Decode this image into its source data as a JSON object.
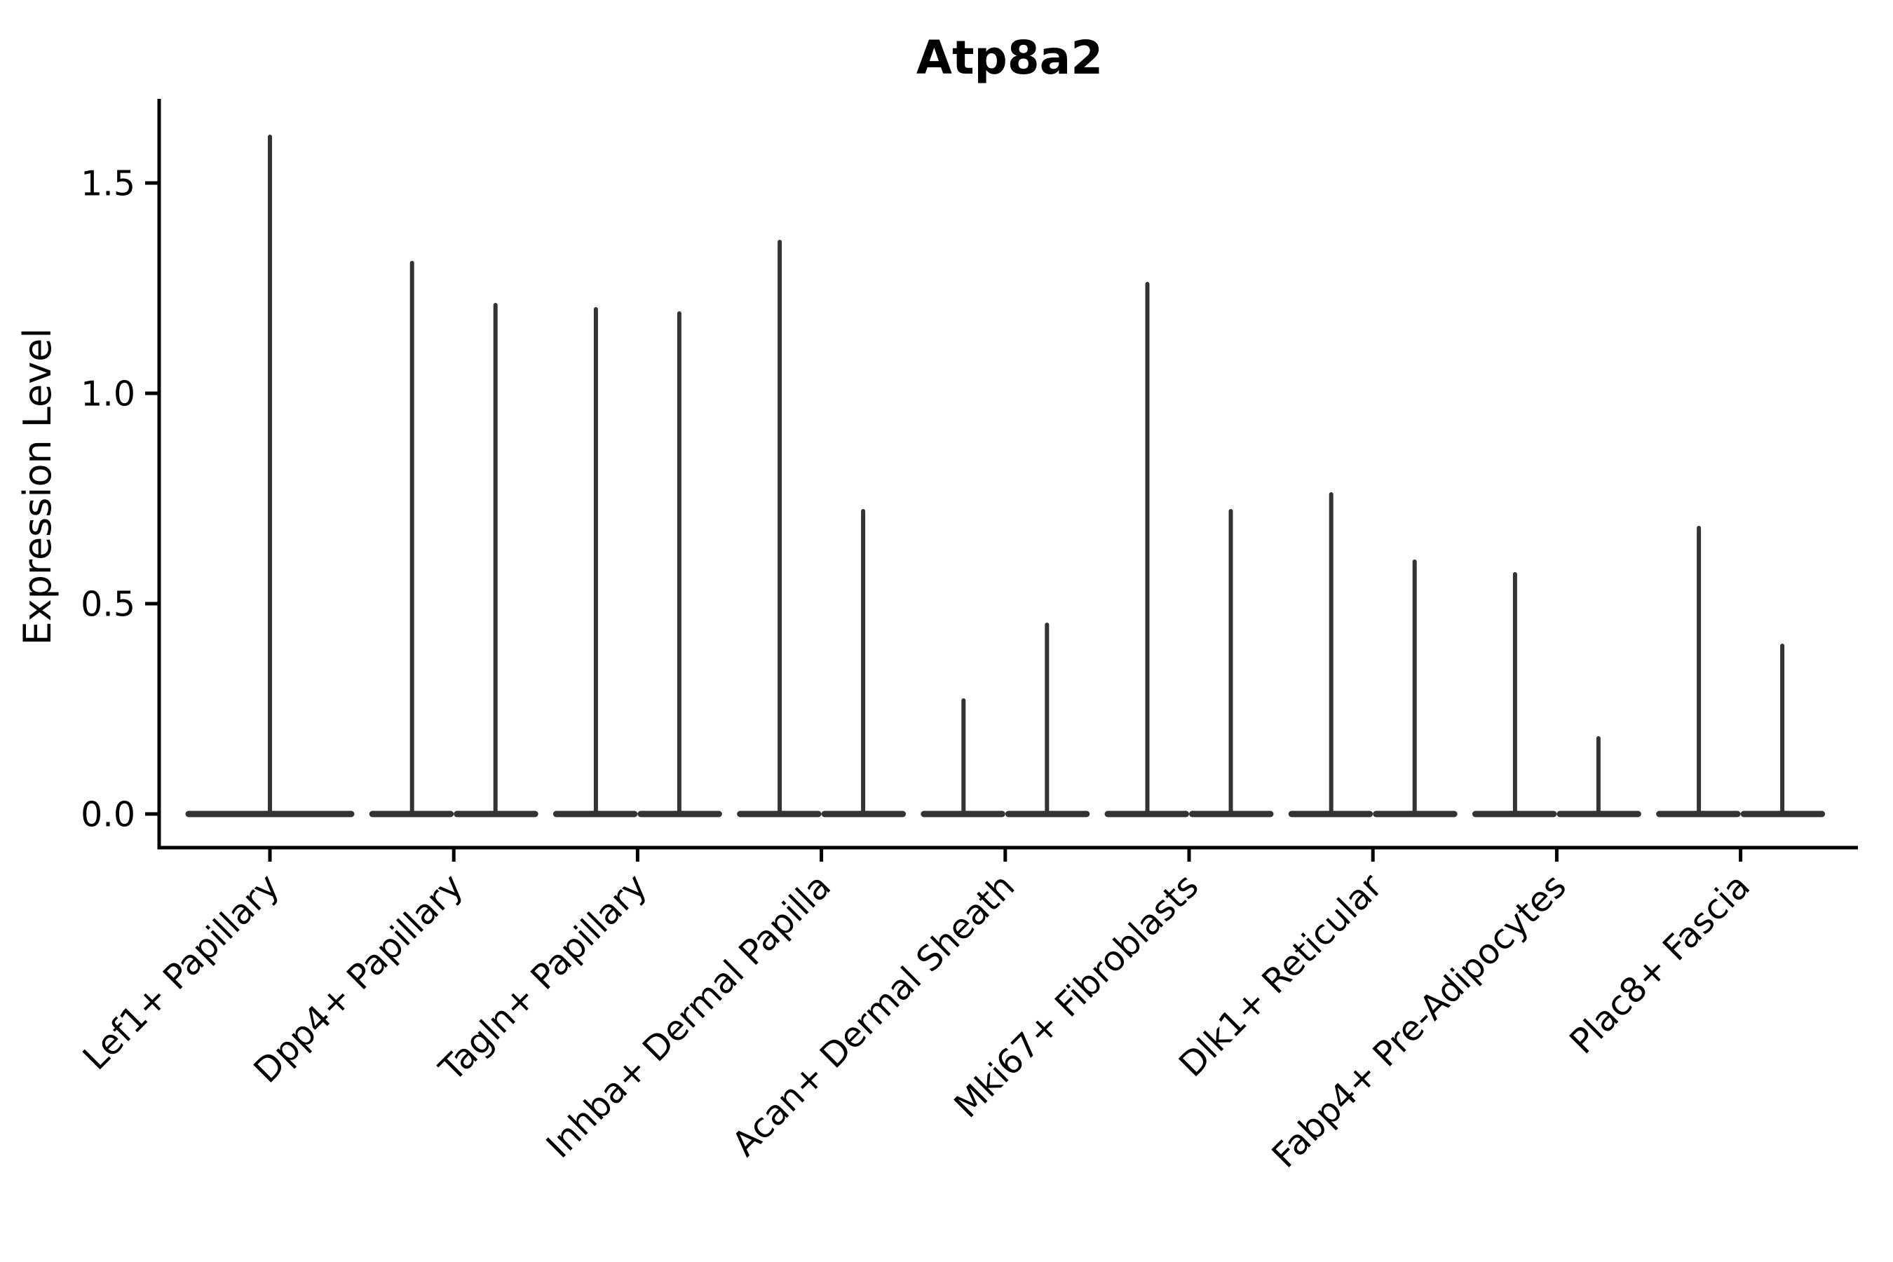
{
  "figure": {
    "title": "Atp8a2",
    "ylabel": "Expression Level"
  },
  "chart_data": {
    "type": "violin",
    "title": "Atp8a2",
    "xlabel": "",
    "ylabel": "Expression Level",
    "ylim": [
      -0.08,
      1.7
    ],
    "yticks": [
      "0.0",
      "0.5",
      "1.0",
      "1.5"
    ],
    "ytick_values": [
      0.0,
      0.5,
      1.0,
      1.5
    ],
    "grid": false,
    "legend": "none",
    "categories": [
      "Lef1+ Papillary",
      "Dpp4+ Papillary",
      "Tagln+ Papillary",
      "Inhba+ Dermal Papilla",
      "Acan+ Dermal Sheath",
      "Mki67+ Fibroblasts",
      "Dlk1+ Reticular",
      "Fabp4+ Pre-Adipocytes",
      "Plac8+ Fascia"
    ],
    "description": "Violin plot of Atp8a2 expression per fibroblast cluster; each violin is almost entirely flat at expression 0 with a thin central spike reaching the maximum expression value. Most categories contain two side-by-side violins; the first category contains one full-width violin.",
    "violins": [
      {
        "category": "Lef1+ Papillary",
        "spikes": [
          {
            "position": "center",
            "max": 1.61
          }
        ]
      },
      {
        "category": "Dpp4+ Papillary",
        "spikes": [
          {
            "position": "left",
            "max": 1.31
          },
          {
            "position": "right",
            "max": 1.21
          }
        ]
      },
      {
        "category": "Tagln+ Papillary",
        "spikes": [
          {
            "position": "left",
            "max": 1.2
          },
          {
            "position": "right",
            "max": 1.19
          }
        ]
      },
      {
        "category": "Inhba+ Dermal Papilla",
        "spikes": [
          {
            "position": "left",
            "max": 1.36
          },
          {
            "position": "right",
            "max": 0.72
          }
        ]
      },
      {
        "category": "Acan+ Dermal Sheath",
        "spikes": [
          {
            "position": "left",
            "max": 0.27
          },
          {
            "position": "right",
            "max": 0.45
          }
        ]
      },
      {
        "category": "Mki67+ Fibroblasts",
        "spikes": [
          {
            "position": "left",
            "max": 1.26
          },
          {
            "position": "right",
            "max": 0.72
          }
        ]
      },
      {
        "category": "Dlk1+ Reticular",
        "spikes": [
          {
            "position": "left",
            "max": 0.76
          },
          {
            "position": "right",
            "max": 0.6
          }
        ]
      },
      {
        "category": "Fabp4+ Pre-Adipocytes",
        "spikes": [
          {
            "position": "left",
            "max": 0.57
          },
          {
            "position": "right",
            "max": 0.18
          }
        ]
      },
      {
        "category": "Plac8+ Fascia",
        "spikes": [
          {
            "position": "left",
            "max": 0.68
          },
          {
            "position": "right",
            "max": 0.4
          }
        ]
      }
    ],
    "colors": {
      "violin_stroke": "#333333",
      "axis": "#000000",
      "background": "#ffffff"
    }
  }
}
